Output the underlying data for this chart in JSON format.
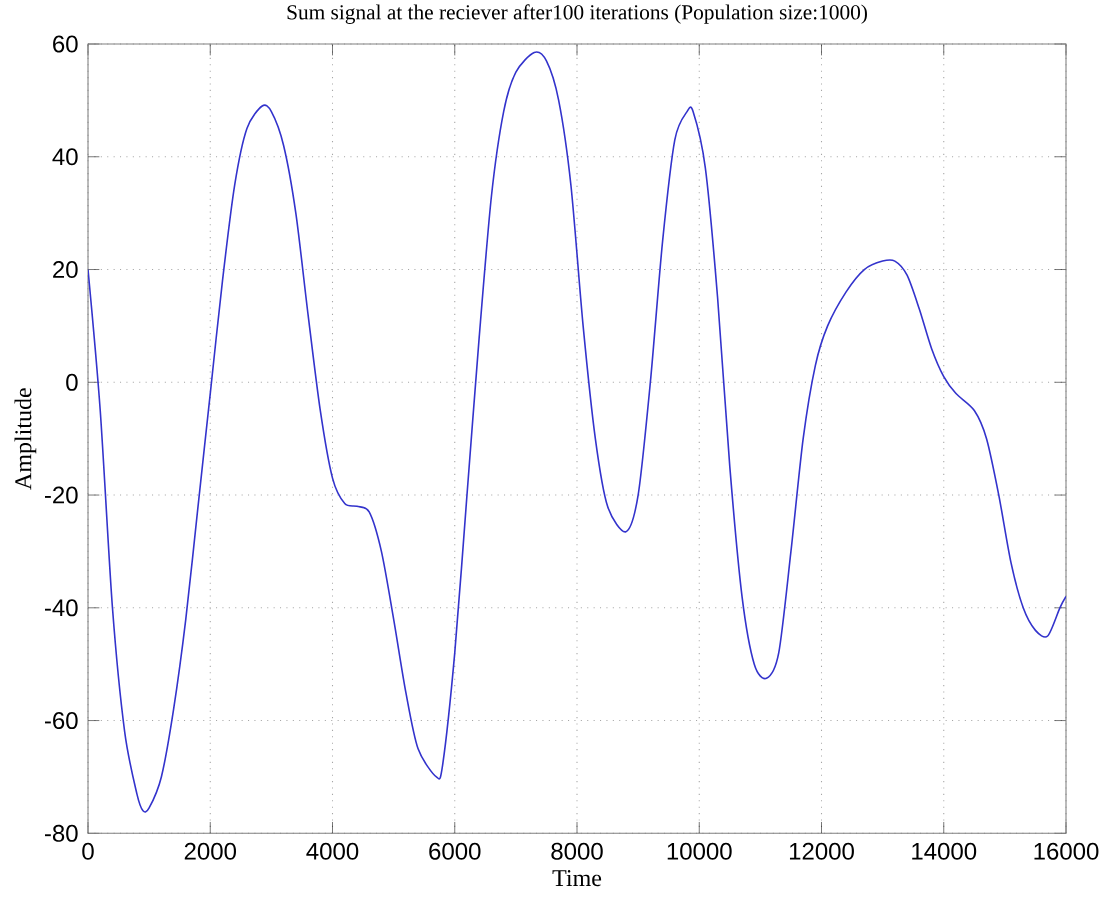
{
  "chart_data": {
    "type": "line",
    "title": "Sum signal at the reciever after100 iterations (Population size:1000)",
    "xlabel": "Time",
    "ylabel": "Amplitude",
    "x": [
      0,
      200,
      400,
      600,
      800,
      900,
      1000,
      1200,
      1400,
      1600,
      1800,
      2000,
      2200,
      2400,
      2600,
      2850,
      3000,
      3200,
      3400,
      3600,
      3800,
      4000,
      4200,
      4400,
      4600,
      4800,
      5000,
      5200,
      5400,
      5700,
      5800,
      6000,
      6200,
      6400,
      6600,
      6800,
      7000,
      7300,
      7500,
      7700,
      7900,
      8100,
      8300,
      8500,
      8800,
      9000,
      9200,
      9400,
      9600,
      9800,
      9900,
      10100,
      10300,
      10500,
      10700,
      10900,
      11100,
      11300,
      11500,
      11700,
      11900,
      12100,
      12400,
      12700,
      13000,
      13200,
      13400,
      13600,
      13800,
      14000,
      14200,
      14500,
      14700,
      14900,
      15100,
      15300,
      15500,
      15700,
      15900,
      16000
    ],
    "series": [
      {
        "color": "#3333cc",
        "values": [
          20,
          -5,
          -40,
          -62,
          -73,
          -76,
          -75.5,
          -70,
          -58,
          -42,
          -22,
          -2,
          18,
          35,
          45,
          49,
          48,
          42,
          30,
          12,
          -5,
          -17,
          -21.5,
          -22,
          -23,
          -30,
          -42,
          -55,
          -65,
          -70,
          -68,
          -48,
          -20,
          8,
          33,
          48,
          55,
          58.5,
          57,
          50,
          35,
          10,
          -10,
          -22,
          -26.5,
          -20,
          0,
          25,
          43,
          48,
          48,
          38,
          15,
          -15,
          -38,
          -50,
          -52.5,
          -48,
          -30,
          -10,
          3,
          10,
          16,
          20,
          21.5,
          21.5,
          19,
          13,
          6,
          1,
          -2,
          -5,
          -10,
          -20,
          -32,
          -40,
          -44,
          -45,
          -40,
          -38
        ]
      }
    ],
    "xlim": [
      0,
      16000
    ],
    "ylim": [
      -80,
      60
    ],
    "xticks": [
      0,
      2000,
      4000,
      6000,
      8000,
      10000,
      12000,
      14000,
      16000
    ],
    "yticks": [
      -80,
      -60,
      -40,
      -20,
      0,
      20,
      40,
      60
    ],
    "grid": true,
    "marker": "none",
    "line_style": "solid"
  }
}
